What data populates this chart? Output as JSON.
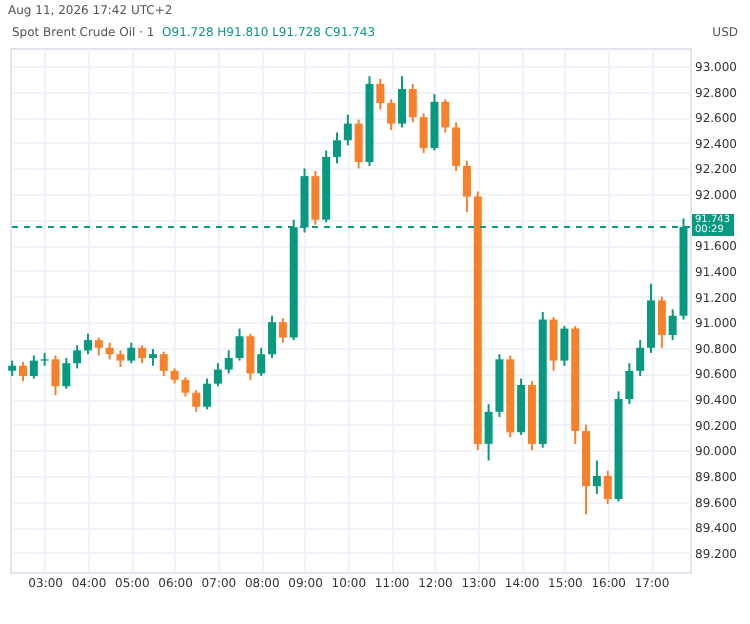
{
  "chart_data": {
    "type": "candlestick",
    "title": "Spot Brent Crude Oil · 1",
    "subtitle": "O91.728 H91.810 L91.728 C91.743",
    "ylabel": "USD",
    "annotations": [
      "Aug 11, 2026 17:42 UTC+2",
      "00:29"
    ],
    "x": [
      2.25,
      2.5,
      2.75,
      3,
      3.25,
      3.5,
      3.75,
      4,
      4.25,
      4.5,
      4.75,
      5,
      5.25,
      5.5,
      5.75,
      6,
      6.25,
      6.5,
      6.75,
      7,
      7.25,
      7.5,
      7.75,
      8,
      8.25,
      8.5,
      8.75,
      9,
      9.25,
      9.5,
      9.75,
      10,
      10.25,
      10.5,
      10.75,
      11,
      11.25,
      11.5,
      11.75,
      12,
      12.25,
      12.5,
      12.75,
      13,
      13.25,
      13.5,
      13.75,
      14,
      14.25,
      14.5,
      14.75,
      15,
      15.25,
      15.5,
      15.75,
      16,
      16.25,
      16.5,
      16.75,
      17,
      17.25,
      17.5,
      17.75
    ],
    "ohlc": [
      [
        90.62,
        90.7,
        90.58,
        90.66
      ],
      [
        90.66,
        90.69,
        90.54,
        90.58
      ],
      [
        90.58,
        90.74,
        90.56,
        90.7
      ],
      [
        90.7,
        90.76,
        90.66,
        90.71
      ],
      [
        90.71,
        90.74,
        90.43,
        90.5
      ],
      [
        90.5,
        90.72,
        90.48,
        90.68
      ],
      [
        90.68,
        90.82,
        90.64,
        90.78
      ],
      [
        90.78,
        90.91,
        90.75,
        90.86
      ],
      [
        90.86,
        90.88,
        90.74,
        90.8
      ],
      [
        90.8,
        90.84,
        90.71,
        90.75
      ],
      [
        90.75,
        90.78,
        90.65,
        90.7
      ],
      [
        90.7,
        90.84,
        90.68,
        90.8
      ],
      [
        90.8,
        90.82,
        90.68,
        90.72
      ],
      [
        90.72,
        90.79,
        90.66,
        90.75
      ],
      [
        90.75,
        90.77,
        90.58,
        90.62
      ],
      [
        90.62,
        90.64,
        90.52,
        90.55
      ],
      [
        90.55,
        90.57,
        90.42,
        90.45
      ],
      [
        90.45,
        90.47,
        90.3,
        90.34
      ],
      [
        90.34,
        90.56,
        90.32,
        90.52
      ],
      [
        90.52,
        90.68,
        90.5,
        90.63
      ],
      [
        90.63,
        90.78,
        90.6,
        90.72
      ],
      [
        90.72,
        90.95,
        90.7,
        90.89
      ],
      [
        90.89,
        90.91,
        90.55,
        90.6
      ],
      [
        90.6,
        90.8,
        90.58,
        90.75
      ],
      [
        90.75,
        91.05,
        90.72,
        91.0
      ],
      [
        91.0,
        91.03,
        90.84,
        90.88
      ],
      [
        90.88,
        91.8,
        90.86,
        91.74
      ],
      [
        91.74,
        92.2,
        91.7,
        92.14
      ],
      [
        92.14,
        92.18,
        91.76,
        91.8
      ],
      [
        91.8,
        92.34,
        91.78,
        92.29
      ],
      [
        92.29,
        92.48,
        92.24,
        92.42
      ],
      [
        92.42,
        92.62,
        92.38,
        92.55
      ],
      [
        92.55,
        92.58,
        92.2,
        92.25
      ],
      [
        92.25,
        92.92,
        92.22,
        92.86
      ],
      [
        92.86,
        92.9,
        92.66,
        92.71
      ],
      [
        92.71,
        92.74,
        92.5,
        92.55
      ],
      [
        92.55,
        92.92,
        92.52,
        92.82
      ],
      [
        92.82,
        92.86,
        92.56,
        92.6
      ],
      [
        92.6,
        92.63,
        92.32,
        92.36
      ],
      [
        92.36,
        92.78,
        92.34,
        92.72
      ],
      [
        92.72,
        92.74,
        92.48,
        92.52
      ],
      [
        92.52,
        92.56,
        92.18,
        92.22
      ],
      [
        92.22,
        92.26,
        91.86,
        91.98
      ],
      [
        91.98,
        92.02,
        90.0,
        90.05
      ],
      [
        90.05,
        90.36,
        89.92,
        90.3
      ],
      [
        90.3,
        90.75,
        90.26,
        90.71
      ],
      [
        90.71,
        90.74,
        90.1,
        90.14
      ],
      [
        90.14,
        90.56,
        90.12,
        90.51
      ],
      [
        90.51,
        90.54,
        90.0,
        90.05
      ],
      [
        90.05,
        91.08,
        90.02,
        91.02
      ],
      [
        91.02,
        91.04,
        90.62,
        90.7
      ],
      [
        90.7,
        90.97,
        90.66,
        90.95
      ],
      [
        90.95,
        90.97,
        90.05,
        90.15
      ],
      [
        90.15,
        90.2,
        89.5,
        89.72
      ],
      [
        89.72,
        89.92,
        89.66,
        89.8
      ],
      [
        89.8,
        89.84,
        89.58,
        89.62
      ],
      [
        89.62,
        90.46,
        89.6,
        90.4
      ],
      [
        90.4,
        90.68,
        90.36,
        90.62
      ],
      [
        90.62,
        90.86,
        90.58,
        90.8
      ],
      [
        90.8,
        91.3,
        90.76,
        91.17
      ],
      [
        91.17,
        91.2,
        90.8,
        90.9
      ],
      [
        90.9,
        91.1,
        90.86,
        91.05
      ],
      [
        91.05,
        91.81,
        91.02,
        91.743
      ]
    ],
    "colors": [
      "#089981",
      "#f7812b",
      "#089981",
      "#089981",
      "#f7812b",
      "#089981",
      "#089981",
      "#089981",
      "#f7812b",
      "#f7812b",
      "#f7812b",
      "#089981",
      "#f7812b",
      "#089981",
      "#f7812b",
      "#f7812b",
      "#f7812b",
      "#f7812b",
      "#089981",
      "#089981",
      "#089981",
      "#089981",
      "#f7812b",
      "#089981",
      "#089981",
      "#f7812b",
      "#089981",
      "#089981",
      "#f7812b",
      "#089981",
      "#089981",
      "#089981",
      "#f7812b",
      "#089981",
      "#f7812b",
      "#f7812b",
      "#089981",
      "#f7812b",
      "#f7812b",
      "#089981",
      "#f7812b",
      "#f7812b",
      "#f7812b",
      "#f7812b",
      "#089981",
      "#089981",
      "#f7812b",
      "#089981",
      "#f7812b",
      "#089981",
      "#f7812b",
      "#089981",
      "#f7812b",
      "#f7812b",
      "#089981",
      "#f7812b",
      "#089981",
      "#089981",
      "#089981",
      "#089981",
      "#f7812b",
      "#089981",
      "#089981"
    ],
    "xlim": [
      2.2,
      17.9
    ],
    "ylim": [
      89.05,
      93.14
    ],
    "xticks": [
      {
        "value": 3,
        "label": "03:00"
      },
      {
        "value": 4,
        "label": "04:00"
      },
      {
        "value": 5,
        "label": "05:00"
      },
      {
        "value": 6,
        "label": "06:00"
      },
      {
        "value": 7,
        "label": "07:00"
      },
      {
        "value": 8,
        "label": "08:00"
      },
      {
        "value": 9,
        "label": "09:00"
      },
      {
        "value": 10,
        "label": "10:00"
      },
      {
        "value": 11,
        "label": "11:00"
      },
      {
        "value": 12,
        "label": "12:00"
      },
      {
        "value": 13,
        "label": "13:00"
      },
      {
        "value": 14,
        "label": "14:00"
      },
      {
        "value": 15,
        "label": "15:00"
      },
      {
        "value": 16,
        "label": "16:00"
      },
      {
        "value": 17,
        "label": "17:00"
      }
    ],
    "yticks": [
      {
        "value": 89.2,
        "label": "89.200"
      },
      {
        "value": 89.4,
        "label": "89.400"
      },
      {
        "value": 89.6,
        "label": "89.600"
      },
      {
        "value": 89.8,
        "label": "89.800"
      },
      {
        "value": 90,
        "label": "90.000"
      },
      {
        "value": 90.2,
        "label": "90.200"
      },
      {
        "value": 90.4,
        "label": "90.400"
      },
      {
        "value": 90.6,
        "label": "90.600"
      },
      {
        "value": 90.8,
        "label": "90.800"
      },
      {
        "value": 91,
        "label": "91.000"
      },
      {
        "value": 91.2,
        "label": "91.200"
      },
      {
        "value": 91.4,
        "label": "91.400"
      },
      {
        "value": 91.6,
        "label": "91.600"
      },
      {
        "value": 91.8,
        "label": null
      },
      {
        "value": 92,
        "label": "92.000"
      },
      {
        "value": 92.2,
        "label": "92.200"
      },
      {
        "value": 92.4,
        "label": "92.400"
      },
      {
        "value": 92.6,
        "label": "92.600"
      },
      {
        "value": 92.8,
        "label": "92.800"
      },
      {
        "value": 93,
        "label": "93.000"
      }
    ],
    "grid": true,
    "ref_lines": [
      {
        "axis": "y",
        "value": 91.743,
        "label": "91.743",
        "color": "#089981",
        "line_style": "dashed"
      }
    ]
  }
}
